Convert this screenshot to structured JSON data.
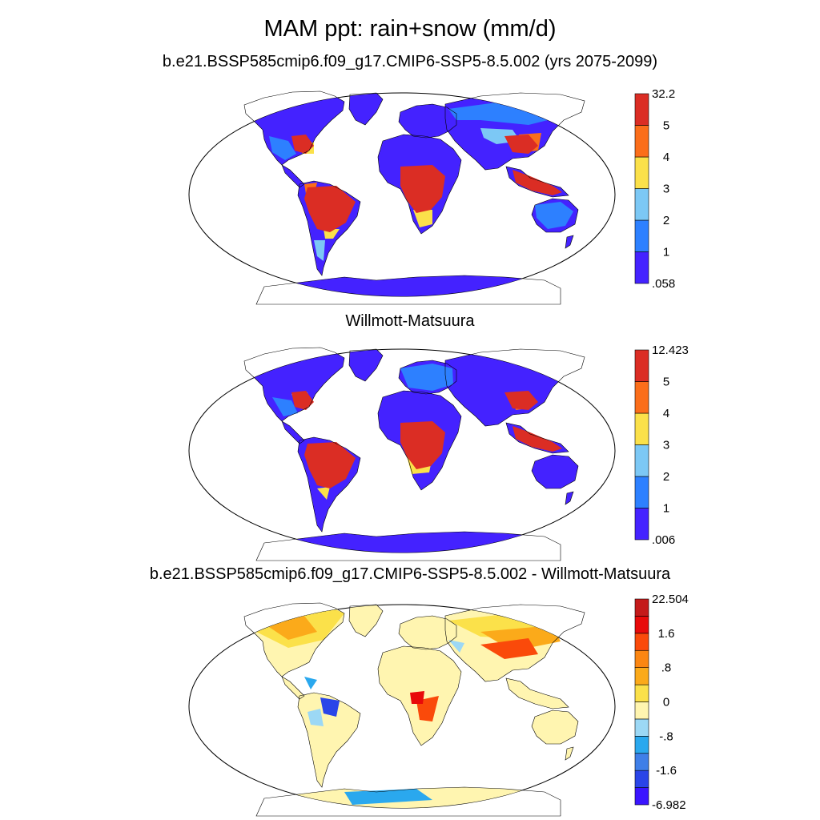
{
  "figure": {
    "title": "MAM ppt: rain+snow (mm/d)"
  },
  "panels": [
    {
      "title": "b.e21.BSSP585cmip6.f09_g17.CMIP6-SSP5-8.5.002 (yrs 2075-2099)",
      "colorbar": {
        "labels": [
          ".058",
          "1",
          "2",
          "3",
          "4",
          "5",
          "32.2"
        ],
        "colors": [
          "#4422ff",
          "#2d80ff",
          "#7cc8f5",
          "#fbe14a",
          "#fb6e1a",
          "#db2d24"
        ]
      }
    },
    {
      "title": "Willmott-Matsuura",
      "colorbar": {
        "labels": [
          ".006",
          "1",
          "2",
          "3",
          "4",
          "5",
          "12.423"
        ],
        "colors": [
          "#4422ff",
          "#2d80ff",
          "#7cc8f5",
          "#fbe14a",
          "#fb6e1a",
          "#db2d24"
        ]
      }
    },
    {
      "title": "b.e21.BSSP585cmip6.f09_g17.CMIP6-SSP5-8.5.002 - Willmott-Matsuura",
      "colorbar": {
        "labels": [
          "-6.982",
          "-1.6",
          "-.8",
          "0",
          ".8",
          "1.6",
          "22.504"
        ],
        "colors": [
          "#3a14ff",
          "#2a45e8",
          "#3f7fe8",
          "#2aa8ee",
          "#9cd8f5",
          "#fff5b0",
          "#fbe14a",
          "#fbaa1a",
          "#fb8612",
          "#fa4a0a",
          "#e80a0a",
          "#c41a1a"
        ]
      }
    }
  ]
}
